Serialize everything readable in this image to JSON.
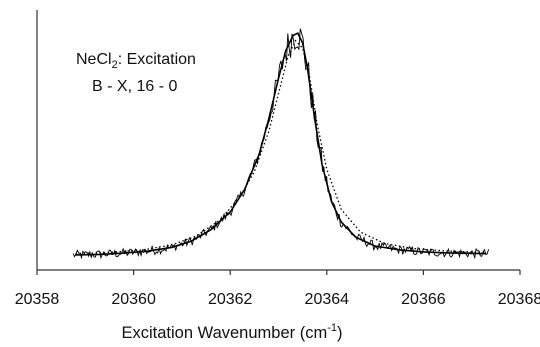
{
  "chart_data": {
    "type": "line",
    "title": "",
    "annotation": {
      "line1_pre": "NeCl",
      "line1_sub": "2",
      "line1_post": ": Excitation",
      "line2": "B - X, 16 - 0"
    },
    "xlabel_pre": "Excitation Wavenumber (cm",
    "xlabel_sup": "-1",
    "xlabel_post": ")",
    "ylabel": "",
    "xlim": [
      20358,
      20368
    ],
    "ylim": [
      0,
      1
    ],
    "x_ticks": [
      "20358",
      "20360",
      "20362",
      "20364",
      "20366",
      "20368"
    ],
    "grid": false,
    "legend": "none",
    "baseline": 0.06,
    "series": [
      {
        "style": "solid-smooth",
        "color": "#000000",
        "x": [
          20358.8,
          20359.3,
          20359.8,
          20360.3,
          20360.8,
          20361.2,
          20361.6,
          20362.0,
          20362.3,
          20362.6,
          20362.8,
          20363.0,
          20363.15,
          20363.3,
          20363.4,
          20363.5,
          20363.6,
          20363.75,
          20363.9,
          20364.1,
          20364.3,
          20364.6,
          20365.0,
          20365.5,
          20366.0,
          20366.5,
          20367.0,
          20367.3
        ],
        "y": [
          0.06,
          0.062,
          0.067,
          0.075,
          0.09,
          0.115,
          0.16,
          0.23,
          0.32,
          0.46,
          0.6,
          0.76,
          0.87,
          0.93,
          0.94,
          0.9,
          0.8,
          0.6,
          0.42,
          0.27,
          0.19,
          0.13,
          0.095,
          0.08,
          0.072,
          0.068,
          0.066,
          0.065
        ]
      },
      {
        "style": "dotted",
        "color": "#000000",
        "x": [
          20358.8,
          20359.5,
          20360.2,
          20360.8,
          20361.3,
          20361.8,
          20362.2,
          20362.5,
          20362.8,
          20363.0,
          20363.2,
          20363.35,
          20363.5,
          20363.65,
          20363.8,
          20364.0,
          20364.3,
          20364.7,
          20365.2,
          20365.8,
          20366.5,
          20367.3
        ],
        "y": [
          0.065,
          0.07,
          0.08,
          0.1,
          0.135,
          0.2,
          0.29,
          0.39,
          0.55,
          0.7,
          0.85,
          0.91,
          0.88,
          0.76,
          0.58,
          0.4,
          0.24,
          0.15,
          0.105,
          0.085,
          0.075,
          0.07
        ]
      }
    ],
    "noisy_trace": {
      "style": "solid-noisy",
      "color": "#000000",
      "x_start": 20358.75,
      "x_end": 20367.35,
      "noise_amplitude": 0.018,
      "peak_extra": [
        {
          "x": 20363.25,
          "y": 0.94
        },
        {
          "x": 20363.4,
          "y": 0.97
        },
        {
          "x": 20363.55,
          "y": 0.88
        },
        {
          "x": 20363.7,
          "y": 0.7
        },
        {
          "x": 20363.85,
          "y": 0.55
        }
      ]
    }
  }
}
